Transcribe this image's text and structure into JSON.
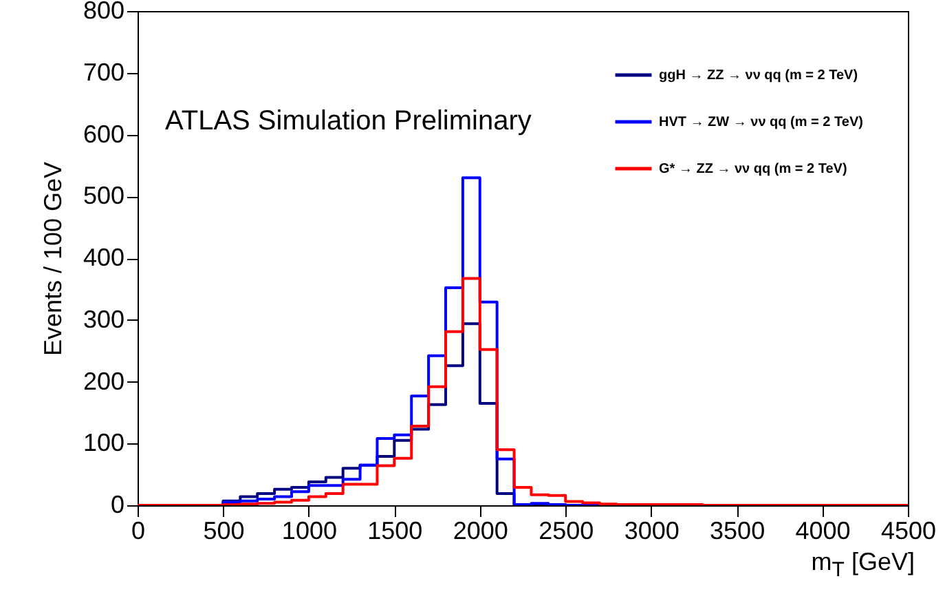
{
  "chart_data": {
    "type": "histogram",
    "xlabel": "m$_{T}$ [GeV]",
    "ylabel": "Events / 100 GeV",
    "annotations": [
      "ATLAS Simulation Preliminary"
    ],
    "bins": [
      0,
      100,
      200,
      300,
      400,
      500,
      600,
      700,
      800,
      900,
      1000,
      1100,
      1200,
      1300,
      1400,
      1500,
      1600,
      1700,
      1800,
      1900,
      2000,
      2100,
      2200,
      2300,
      2400,
      2500,
      2600,
      2700,
      2800,
      2900,
      3000,
      3100,
      3200,
      3300,
      3400,
      3500,
      3600,
      3700,
      3800,
      3900,
      4000,
      4100,
      4200,
      4300,
      4400,
      4500
    ],
    "series": [
      {
        "name": "ggH → ZZ → νν qq (m = 2 TeV)",
        "color": "#000080",
        "values": [
          0,
          0,
          0,
          0,
          0,
          7,
          14,
          19,
          26,
          29,
          38,
          45,
          60,
          65,
          79,
          105,
          123,
          163,
          226,
          294,
          165,
          19,
          0,
          0,
          0,
          0,
          0,
          0,
          0,
          0,
          0,
          0,
          0,
          0,
          0,
          0,
          0,
          0,
          0,
          0,
          0,
          0,
          0,
          0,
          0
        ]
      },
      {
        "name": "HVT → ZW → νν qq (m = 2 TeV)",
        "color": "#0000ff",
        "values": [
          0,
          0,
          0,
          0,
          0,
          5,
          7,
          10,
          14,
          22,
          32,
          32,
          42,
          65,
          108,
          114,
          177,
          242,
          352,
          530,
          329,
          75,
          1,
          3,
          1,
          0,
          0,
          0,
          0,
          0,
          0,
          0,
          0,
          0,
          0,
          0,
          0,
          0,
          0,
          0,
          0,
          0,
          0,
          0,
          0
        ]
      },
      {
        "name": "G* → ZZ → νν qq (m = 2 TeV)",
        "color": "#ff0000",
        "values": [
          0,
          0,
          0,
          0,
          0,
          1,
          2,
          3,
          5,
          8,
          14,
          19,
          34,
          34,
          64,
          76,
          128,
          192,
          281,
          367,
          252,
          90,
          29,
          17,
          16,
          6,
          4,
          2,
          1,
          1,
          1,
          1,
          1,
          0,
          0,
          0,
          0,
          0,
          0,
          0,
          0,
          0,
          0,
          0,
          0
        ]
      }
    ],
    "xlim": [
      0,
      4500
    ],
    "xticks": [
      0,
      500,
      1000,
      1500,
      2000,
      2500,
      3000,
      3500,
      4000,
      4500
    ],
    "ylim": [
      0,
      800
    ],
    "yticks": [
      0,
      100,
      200,
      300,
      400,
      500,
      600,
      700,
      800
    ],
    "legend": "top right"
  }
}
